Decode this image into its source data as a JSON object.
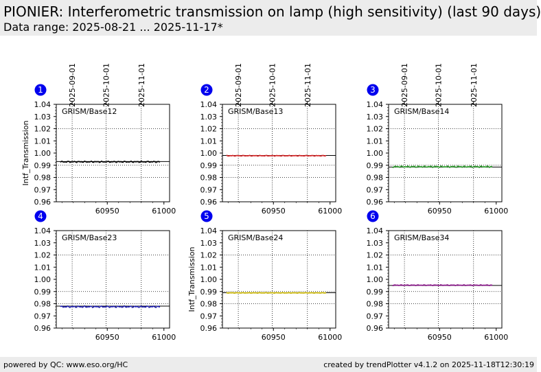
{
  "header": {
    "title": "PIONIER: Interferometric transmission on lamp (high sensitivity) (last 90 days)",
    "subtitle": "Data range: 2025-08-21 ... 2025-11-17*"
  },
  "footer": {
    "left": "powered by QC: www.eso.org/HC",
    "right": "created by trendPlotter v4.1.2 on 2025-11-18T12:30:19"
  },
  "chart_data": [
    {
      "type": "scatter",
      "panel": "1",
      "title": "GRISM/Base12",
      "ylabel": "Intf_Transmission",
      "show_ylabel": true,
      "xlim": [
        60905,
        61005
      ],
      "ylim": [
        0.96,
        1.04
      ],
      "yticks": [
        "0.96",
        "0.97",
        "0.98",
        "0.99",
        "1.00",
        "1.01",
        "1.02",
        "1.03",
        "1.04"
      ],
      "xticks": [
        {
          "value": 60950,
          "label": "60950"
        },
        {
          "value": 61000,
          "label": "61000"
        }
      ],
      "top_ticks": [
        {
          "value": 60919,
          "label": "2025-09-01"
        },
        {
          "value": 60949,
          "label": "2025-10-01"
        },
        {
          "value": 60980,
          "label": "2025-11-01"
        }
      ],
      "grid_y": [
        0.98,
        0.99,
        1.02
      ],
      "grid_x": [
        60919,
        60949,
        60980
      ],
      "reference": 0.993,
      "series_color": "#000000",
      "x_range": [
        60909,
        60996
      ],
      "level": 0.9928,
      "spread": 0.0005,
      "n_points": 88
    },
    {
      "type": "scatter",
      "panel": "2",
      "title": "GRISM/Base13",
      "ylabel": "Intf_Transmission",
      "show_ylabel": false,
      "xlim": [
        60905,
        61005
      ],
      "ylim": [
        0.96,
        1.04
      ],
      "yticks": [
        "0.96",
        "0.97",
        "0.98",
        "0.99",
        "1.00",
        "1.01",
        "1.02",
        "1.03",
        "1.04"
      ],
      "xticks": [
        {
          "value": 60950,
          "label": "60950"
        },
        {
          "value": 61000,
          "label": "61000"
        }
      ],
      "top_ticks": [
        {
          "value": 60919,
          "label": "2025-09-01"
        },
        {
          "value": 60949,
          "label": "2025-10-01"
        },
        {
          "value": 60980,
          "label": "2025-11-01"
        }
      ],
      "grid_y": [
        0.98,
        0.99,
        1.02
      ],
      "grid_x": [
        60919,
        60949,
        60980
      ],
      "reference": 0.998,
      "series_color": "#d62728",
      "x_range": [
        60909,
        60996
      ],
      "level": 0.9978,
      "spread": 0.0003,
      "n_points": 88
    },
    {
      "type": "scatter",
      "panel": "3",
      "title": "GRISM/Base14",
      "ylabel": "Intf_Transmission",
      "show_ylabel": false,
      "xlim": [
        60905,
        61005
      ],
      "ylim": [
        0.96,
        1.04
      ],
      "yticks": [
        "0.96",
        "0.97",
        "0.98",
        "0.99",
        "1.00",
        "1.01",
        "1.02",
        "1.03",
        "1.04"
      ],
      "xticks": [
        {
          "value": 60950,
          "label": "60950"
        },
        {
          "value": 61000,
          "label": "61000"
        }
      ],
      "top_ticks": [
        {
          "value": 60919,
          "label": "2025-09-01"
        },
        {
          "value": 60949,
          "label": "2025-10-01"
        },
        {
          "value": 60980,
          "label": "2025-11-01"
        }
      ],
      "grid_y": [
        0.98,
        0.99,
        1.02
      ],
      "grid_x": [
        60919,
        60949,
        60980
      ],
      "reference": 0.9885,
      "series_color": "#2ca02c",
      "x_range": [
        60909,
        60996
      ],
      "level": 0.9888,
      "spread": 0.0006,
      "n_points": 88
    },
    {
      "type": "scatter",
      "panel": "4",
      "title": "GRISM/Base23",
      "ylabel": "Intf_Transmission",
      "show_ylabel": false,
      "xlim": [
        60905,
        61005
      ],
      "ylim": [
        0.96,
        1.04
      ],
      "yticks": [
        "0.96",
        "0.97",
        "0.98",
        "0.99",
        "1.00",
        "1.01",
        "1.02",
        "1.03",
        "1.04"
      ],
      "xticks": [
        {
          "value": 60950,
          "label": "60950"
        },
        {
          "value": 61000,
          "label": "61000"
        }
      ],
      "top_ticks": [],
      "grid_y": [
        0.98,
        0.99,
        1.02
      ],
      "grid_x": [
        60919,
        60949,
        60980
      ],
      "reference": 0.978,
      "series_color": "#1f1fb4",
      "x_range": [
        60909,
        60996
      ],
      "level": 0.9775,
      "spread": 0.0006,
      "n_points": 88
    },
    {
      "type": "scatter",
      "panel": "5",
      "title": "GRISM/Base24",
      "ylabel": "Intf_Transmission",
      "show_ylabel": true,
      "xlim": [
        60905,
        61005
      ],
      "ylim": [
        0.96,
        1.04
      ],
      "yticks": [
        "0.96",
        "0.97",
        "0.98",
        "0.99",
        "1.00",
        "1.01",
        "1.02",
        "1.03",
        "1.04"
      ],
      "xticks": [
        {
          "value": 60950,
          "label": "60950"
        },
        {
          "value": 61000,
          "label": "61000"
        }
      ],
      "top_ticks": [],
      "grid_y": [
        0.98,
        0.99,
        1.02
      ],
      "grid_x": [
        60919,
        60949,
        60980
      ],
      "reference": 0.989,
      "series_color": "#c8b400",
      "x_range": [
        60909,
        60996
      ],
      "level": 0.9889,
      "spread": 0.0002,
      "n_points": 88
    },
    {
      "type": "scatter",
      "panel": "6",
      "title": "GRISM/Base34",
      "ylabel": "Intf_Transmission",
      "show_ylabel": false,
      "xlim": [
        60905,
        61005
      ],
      "ylim": [
        0.96,
        1.04
      ],
      "yticks": [
        "0.96",
        "0.97",
        "0.98",
        "0.99",
        "1.00",
        "1.01",
        "1.02",
        "1.03",
        "1.04"
      ],
      "xticks": [
        {
          "value": 60950,
          "label": "60950"
        },
        {
          "value": 61000,
          "label": "61000"
        }
      ],
      "top_ticks": [],
      "grid_y": [
        0.98,
        0.99,
        1.02
      ],
      "grid_x": [
        60919,
        60949,
        60980
      ],
      "reference": 0.995,
      "series_color": "#8b1a8b",
      "x_range": [
        60909,
        60996
      ],
      "level": 0.9952,
      "spread": 0.0003,
      "n_points": 88
    }
  ]
}
